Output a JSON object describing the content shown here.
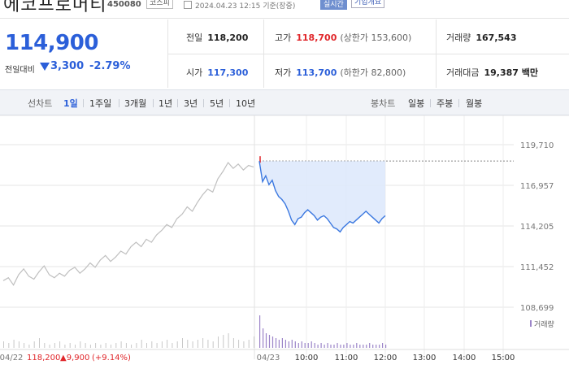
{
  "header": {
    "stock_name": "에코프로머티",
    "stock_code": "450080",
    "market_badge": "코스피",
    "datetime": "2024.04.23 12:15 기준(장중)",
    "realtime_badge": "실시간",
    "company_button": "기업개요"
  },
  "quote": {
    "price": "114,900",
    "change_label": "전일대비",
    "change": "3,300",
    "change_pct": "-2.79%",
    "direction": "down"
  },
  "stats": {
    "prev_close": {
      "label": "전일",
      "value": "118,200"
    },
    "high": {
      "label": "고가",
      "value": "118,700",
      "sub": "(상한가 153,600)"
    },
    "volume": {
      "label": "거래량",
      "value": "167,543"
    },
    "open": {
      "label": "시가",
      "value": "117,300"
    },
    "low": {
      "label": "저가",
      "value": "113,700",
      "sub": "(하한가 82,800)"
    },
    "amount": {
      "label": "거래대금",
      "value": "19,387 백만"
    }
  },
  "tabs": {
    "line_label": "선차트",
    "periods": [
      "1일",
      "1주일",
      "3개월",
      "1년",
      "3년",
      "5년",
      "10년"
    ],
    "selected_period": "1일",
    "candle_label": "봉차트",
    "candle_periods": [
      "일봉",
      "주봉",
      "월봉"
    ]
  },
  "colors": {
    "up": "#e0262a",
    "down": "#2b5fd9",
    "prev_day_line": "#bfbfbf"
  },
  "chart_data": {
    "type": "line",
    "ylim": [
      108699,
      119710
    ],
    "y_ticks": [
      "119,710",
      "116,957",
      "114,205",
      "111,452",
      "108,699"
    ],
    "x_ticks": [
      "04/22",
      "04/23",
      "10:00",
      "11:00",
      "12:00",
      "13:00",
      "14:00",
      "15:00"
    ],
    "prev_day_summary": {
      "date": "04/22",
      "close": "118,200",
      "change": "▲9,900",
      "change_pct": "(+9.14%)"
    },
    "volume_legend": "거래량",
    "series": [
      {
        "date": "04/22",
        "values": [
          110500,
          110700,
          110200,
          110900,
          111300,
          110800,
          110600,
          111100,
          111500,
          110900,
          110700,
          111000,
          110800,
          111200,
          111400,
          111000,
          111300,
          111700,
          111400,
          111900,
          112200,
          111800,
          112100,
          112500,
          112300,
          112800,
          113100,
          112800,
          113300,
          113100,
          113600,
          113900,
          114300,
          114100,
          114700,
          115000,
          115500,
          115200,
          115800,
          116300,
          116700,
          116500,
          117400,
          117900,
          118500,
          118100,
          118400,
          118000,
          118300,
          118200
        ]
      },
      {
        "date": "04/23",
        "values": [
          118600,
          117200,
          117600,
          117000,
          117300,
          116600,
          116200,
          116000,
          115700,
          115200,
          114600,
          114300,
          114700,
          114800,
          115100,
          115300,
          115100,
          114900,
          114600,
          114800,
          114900,
          114700,
          114400,
          114100,
          114000,
          113800,
          114100,
          114300,
          114500,
          114400,
          114600,
          114800,
          115000,
          115200,
          115000,
          114800,
          114600,
          114400,
          114700,
          114900
        ]
      }
    ],
    "volume_04_22": [
      4,
      3,
      5,
      4,
      3,
      2,
      4,
      6,
      3,
      2,
      3,
      4,
      2,
      3,
      2,
      4,
      3,
      2,
      3,
      2,
      3,
      2,
      3,
      4,
      3,
      2,
      3,
      5,
      3,
      4,
      3,
      4,
      5,
      3,
      4,
      6,
      5,
      4,
      5,
      6,
      5,
      4,
      7,
      8,
      9,
      6,
      5,
      4,
      5,
      7
    ],
    "volume_04_23": [
      20,
      12,
      9,
      8,
      7,
      6,
      5,
      6,
      5,
      4,
      5,
      4,
      3,
      4,
      3,
      3,
      4,
      3,
      2,
      3,
      2,
      3,
      2,
      2,
      3,
      2,
      2,
      3,
      2,
      2,
      3,
      2,
      2,
      2,
      3,
      2,
      2,
      2,
      3,
      2
    ]
  }
}
